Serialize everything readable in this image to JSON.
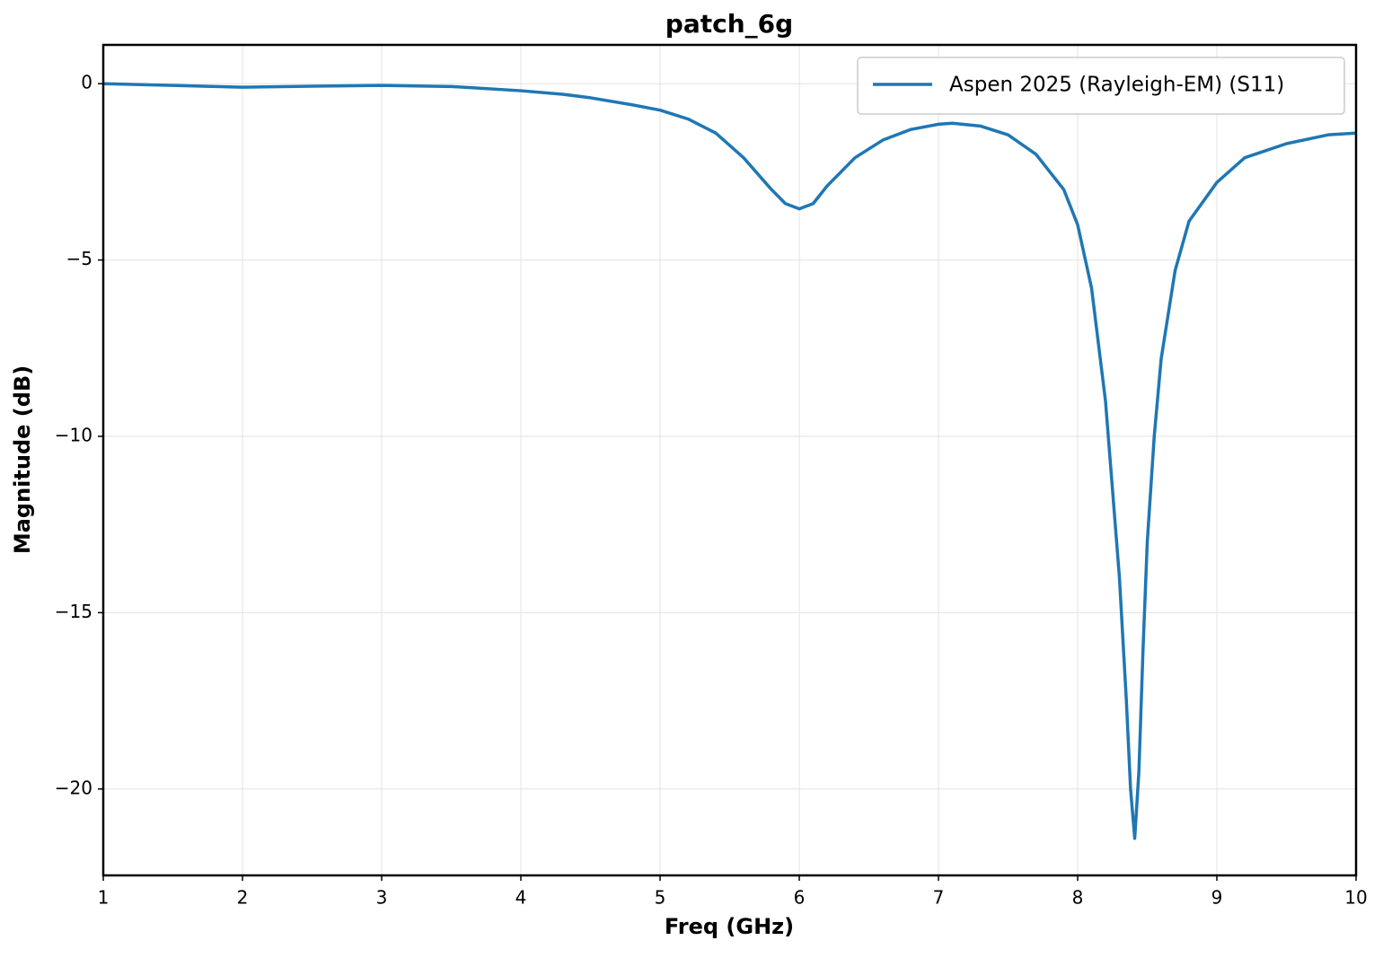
{
  "chart_data": {
    "type": "line",
    "title": "patch_6g",
    "xlabel": "Freq (GHz)",
    "ylabel": "Magnitude (dB)",
    "x": [
      1,
      1.5,
      2,
      2.5,
      3,
      3.5,
      4,
      4.3,
      4.5,
      4.8,
      5,
      5.2,
      5.4,
      5.6,
      5.8,
      5.9,
      6.0,
      6.1,
      6.2,
      6.4,
      6.6,
      6.8,
      7.0,
      7.1,
      7.3,
      7.5,
      7.7,
      7.9,
      8.0,
      8.1,
      8.2,
      8.3,
      8.35,
      8.38,
      8.41,
      8.44,
      8.47,
      8.5,
      8.55,
      8.6,
      8.7,
      8.8,
      9.0,
      9.2,
      9.5,
      9.8,
      10
    ],
    "series": [
      {
        "name": "Aspen 2025 (Rayleigh-EM) (S11)",
        "color": "#1f77b4",
        "values": [
          0,
          -0.05,
          -0.1,
          -0.07,
          -0.05,
          -0.08,
          -0.2,
          -0.3,
          -0.4,
          -0.6,
          -0.75,
          -1.0,
          -1.4,
          -2.1,
          -3.0,
          -3.4,
          -3.55,
          -3.4,
          -2.9,
          -2.1,
          -1.6,
          -1.3,
          -1.15,
          -1.12,
          -1.2,
          -1.45,
          -2.0,
          -3.0,
          -4.0,
          -5.8,
          -9.0,
          -14.0,
          -17.5,
          -20.0,
          -21.4,
          -19.5,
          -16,
          -13,
          -10,
          -7.8,
          -5.3,
          -3.9,
          -2.8,
          -2.1,
          -1.7,
          -1.45,
          -1.4
        ]
      }
    ],
    "xlim": [
      1,
      10
    ],
    "xticks": [
      1,
      2,
      3,
      4,
      5,
      6,
      7,
      8,
      9,
      10
    ],
    "ylim": [
      -22.45,
      1.1
    ],
    "yticks": [
      0,
      {
        "value": -5,
        "label": "−5"
      },
      {
        "value": -10,
        "label": "−10"
      },
      {
        "value": -15,
        "label": "−15"
      },
      {
        "value": -20,
        "label": "−20"
      }
    ],
    "grid": true,
    "legend": "upper right"
  }
}
